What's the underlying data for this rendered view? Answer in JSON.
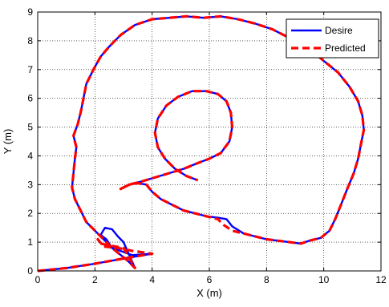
{
  "chart_data": {
    "type": "line",
    "title": "",
    "xlabel": "X (m)",
    "ylabel": "Y (m)",
    "xlim": [
      0,
      12
    ],
    "ylim": [
      0,
      9
    ],
    "xticks": [
      "0",
      "2",
      "4",
      "6",
      "8",
      "10",
      "12"
    ],
    "yticks": [
      "0",
      "1",
      "2",
      "3",
      "4",
      "5",
      "6",
      "7",
      "8",
      "9"
    ],
    "grid": true,
    "legend_position": "top-right",
    "series": [
      {
        "name": "Desire",
        "color": "#0000ff",
        "style": "solid",
        "points": [
          [
            0,
            0
          ],
          [
            1,
            0.1
          ],
          [
            2,
            0.25
          ],
          [
            3.1,
            0.45
          ],
          [
            4,
            0.6
          ],
          [
            3.3,
            0.55
          ],
          [
            2.6,
            0.8
          ],
          [
            2.4,
            1.1
          ],
          [
            2.2,
            1.25
          ],
          [
            2.35,
            1.5
          ],
          [
            2.6,
            1.45
          ],
          [
            2.8,
            1.2
          ],
          [
            3.0,
            1.0
          ],
          [
            3.4,
            0.1
          ],
          [
            3.15,
            0.35
          ],
          [
            2.6,
            0.8
          ],
          [
            2.1,
            1.3
          ],
          [
            1.7,
            1.7
          ],
          [
            1.5,
            2.1
          ],
          [
            1.3,
            2.5
          ],
          [
            1.2,
            2.9
          ],
          [
            1.25,
            3.4
          ],
          [
            1.3,
            3.9
          ],
          [
            1.35,
            4.3
          ],
          [
            1.25,
            4.7
          ],
          [
            1.4,
            5.1
          ],
          [
            1.5,
            5.5
          ],
          [
            1.6,
            6.0
          ],
          [
            1.7,
            6.5
          ],
          [
            1.95,
            7.0
          ],
          [
            2.2,
            7.45
          ],
          [
            2.5,
            7.8
          ],
          [
            2.9,
            8.2
          ],
          [
            3.4,
            8.55
          ],
          [
            4.0,
            8.75
          ],
          [
            4.6,
            8.8
          ],
          [
            5.2,
            8.85
          ],
          [
            5.8,
            8.8
          ],
          [
            6.4,
            8.85
          ],
          [
            7.0,
            8.75
          ],
          [
            7.6,
            8.6
          ],
          [
            8.2,
            8.4
          ],
          [
            8.8,
            8.1
          ],
          [
            9.4,
            7.8
          ],
          [
            10.0,
            7.3
          ],
          [
            10.5,
            6.9
          ],
          [
            10.9,
            6.4
          ],
          [
            11.2,
            5.9
          ],
          [
            11.35,
            5.4
          ],
          [
            11.4,
            4.9
          ],
          [
            11.3,
            4.4
          ],
          [
            11.2,
            3.9
          ],
          [
            11.05,
            3.4
          ],
          [
            10.8,
            2.8
          ],
          [
            10.6,
            2.3
          ],
          [
            10.4,
            1.8
          ],
          [
            10.2,
            1.4
          ],
          [
            9.9,
            1.15
          ],
          [
            9.5,
            1.05
          ],
          [
            9.2,
            0.95
          ],
          [
            8.8,
            1.0
          ],
          [
            8.4,
            1.05
          ],
          [
            8.0,
            1.1
          ],
          [
            7.6,
            1.2
          ],
          [
            7.2,
            1.3
          ],
          [
            6.8,
            1.55
          ],
          [
            6.6,
            1.8
          ],
          [
            6.3,
            1.85
          ],
          [
            5.9,
            1.9
          ],
          [
            5.5,
            2.0
          ],
          [
            5.1,
            2.1
          ],
          [
            4.7,
            2.3
          ],
          [
            4.3,
            2.5
          ],
          [
            4.0,
            2.75
          ],
          [
            3.8,
            3.0
          ],
          [
            3.5,
            3.05
          ],
          [
            3.2,
            3.0
          ],
          [
            3.0,
            2.9
          ],
          [
            2.9,
            2.85
          ],
          [
            3.2,
            3.0
          ],
          [
            3.6,
            3.1
          ],
          [
            4.1,
            3.25
          ],
          [
            4.6,
            3.4
          ],
          [
            5.1,
            3.55
          ],
          [
            5.6,
            3.75
          ],
          [
            6.0,
            3.9
          ],
          [
            6.4,
            4.1
          ],
          [
            6.7,
            4.5
          ],
          [
            6.8,
            5.0
          ],
          [
            6.75,
            5.5
          ],
          [
            6.6,
            5.9
          ],
          [
            6.3,
            6.15
          ],
          [
            5.9,
            6.25
          ],
          [
            5.4,
            6.25
          ],
          [
            4.9,
            6.05
          ],
          [
            4.5,
            5.75
          ],
          [
            4.2,
            5.3
          ],
          [
            4.1,
            4.8
          ],
          [
            4.2,
            4.3
          ],
          [
            4.45,
            3.9
          ],
          [
            4.8,
            3.55
          ],
          [
            5.2,
            3.3
          ],
          [
            5.6,
            3.15
          ]
        ]
      },
      {
        "name": "Predicted",
        "color": "#ff0000",
        "style": "dashed",
        "points": [
          [
            0,
            0
          ],
          [
            1,
            0.1
          ],
          [
            2,
            0.25
          ],
          [
            3.1,
            0.45
          ],
          [
            4,
            0.6
          ],
          [
            3.3,
            0.7
          ],
          [
            2.8,
            0.8
          ],
          [
            2.3,
            0.85
          ],
          [
            2.1,
            1.1
          ],
          [
            2.2,
            0.95
          ],
          [
            2.7,
            0.85
          ],
          [
            3.0,
            0.8
          ],
          [
            3.4,
            0.1
          ],
          [
            3.15,
            0.35
          ],
          [
            2.6,
            0.8
          ],
          [
            2.1,
            1.3
          ],
          [
            1.7,
            1.7
          ],
          [
            1.5,
            2.1
          ],
          [
            1.3,
            2.5
          ],
          [
            1.2,
            2.9
          ],
          [
            1.25,
            3.4
          ],
          [
            1.3,
            3.9
          ],
          [
            1.35,
            4.3
          ],
          [
            1.25,
            4.7
          ],
          [
            1.4,
            5.1
          ],
          [
            1.5,
            5.5
          ],
          [
            1.6,
            6.0
          ],
          [
            1.7,
            6.5
          ],
          [
            1.95,
            7.0
          ],
          [
            2.2,
            7.45
          ],
          [
            2.5,
            7.8
          ],
          [
            2.9,
            8.2
          ],
          [
            3.4,
            8.55
          ],
          [
            4.0,
            8.75
          ],
          [
            4.6,
            8.8
          ],
          [
            5.2,
            8.85
          ],
          [
            5.8,
            8.8
          ],
          [
            6.4,
            8.85
          ],
          [
            7.0,
            8.75
          ],
          [
            7.6,
            8.6
          ],
          [
            8.2,
            8.4
          ],
          [
            8.8,
            8.1
          ],
          [
            9.4,
            7.8
          ],
          [
            10.0,
            7.3
          ],
          [
            10.5,
            6.9
          ],
          [
            10.9,
            6.4
          ],
          [
            11.2,
            5.9
          ],
          [
            11.35,
            5.4
          ],
          [
            11.4,
            4.9
          ],
          [
            11.3,
            4.4
          ],
          [
            11.2,
            3.9
          ],
          [
            11.05,
            3.4
          ],
          [
            10.8,
            2.8
          ],
          [
            10.6,
            2.3
          ],
          [
            10.4,
            1.8
          ],
          [
            10.2,
            1.4
          ],
          [
            9.9,
            1.15
          ],
          [
            9.5,
            1.05
          ],
          [
            9.2,
            0.95
          ],
          [
            8.8,
            1.0
          ],
          [
            8.4,
            1.05
          ],
          [
            8.0,
            1.1
          ],
          [
            7.6,
            1.2
          ],
          [
            7.2,
            1.3
          ],
          [
            6.8,
            1.4
          ],
          [
            6.5,
            1.6
          ],
          [
            6.3,
            1.8
          ],
          [
            5.9,
            1.9
          ],
          [
            5.5,
            2.0
          ],
          [
            5.1,
            2.1
          ],
          [
            4.7,
            2.3
          ],
          [
            4.3,
            2.5
          ],
          [
            4.0,
            2.75
          ],
          [
            3.8,
            3.0
          ],
          [
            3.5,
            3.05
          ],
          [
            3.2,
            3.0
          ],
          [
            3.0,
            2.9
          ],
          [
            2.9,
            2.85
          ],
          [
            3.2,
            3.0
          ],
          [
            3.6,
            3.1
          ],
          [
            4.1,
            3.25
          ],
          [
            4.6,
            3.4
          ],
          [
            5.1,
            3.55
          ],
          [
            5.6,
            3.75
          ],
          [
            6.0,
            3.9
          ],
          [
            6.4,
            4.1
          ],
          [
            6.7,
            4.5
          ],
          [
            6.8,
            5.0
          ],
          [
            6.75,
            5.5
          ],
          [
            6.6,
            5.9
          ],
          [
            6.3,
            6.15
          ],
          [
            5.9,
            6.25
          ],
          [
            5.4,
            6.25
          ],
          [
            4.9,
            6.05
          ],
          [
            4.5,
            5.75
          ],
          [
            4.2,
            5.3
          ],
          [
            4.1,
            4.8
          ],
          [
            4.2,
            4.3
          ],
          [
            4.45,
            3.9
          ],
          [
            4.8,
            3.55
          ],
          [
            5.2,
            3.3
          ],
          [
            5.6,
            3.15
          ]
        ]
      }
    ]
  }
}
